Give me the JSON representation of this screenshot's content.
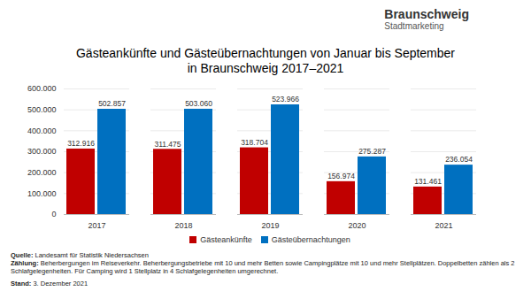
{
  "logo": {
    "name": "Braunschweig",
    "subname": "Stadtmarketing"
  },
  "chart_data": {
    "type": "bar",
    "title": "Gästeankünfte und Gästeübernachtungen von Januar bis September",
    "subtitle": "in Braunschweig 2017–2021",
    "categories": [
      "2017",
      "2018",
      "2019",
      "2020",
      "2021"
    ],
    "series": [
      {
        "name": "Gästeankünfte",
        "color": "#c00000",
        "values": [
          312916,
          311475,
          318704,
          156974,
          131461
        ],
        "value_labels": [
          "312.916",
          "311.475",
          "318.704",
          "156.974",
          "131.461"
        ]
      },
      {
        "name": "Gästeübernachtungen",
        "color": "#0070c0",
        "values": [
          502857,
          503060,
          523966,
          275287,
          236054
        ],
        "value_labels": [
          "502.857",
          "503.060",
          "523.966",
          "275.287",
          "236.054"
        ]
      }
    ],
    "ylim": [
      0,
      600000
    ],
    "yticks": [
      0,
      {
        "value": 100000,
        "label": "100.000"
      },
      {
        "value": 200000,
        "label": "200.000"
      },
      {
        "value": 300000,
        "label": "300.000"
      },
      {
        "value": 400000,
        "label": "400.000"
      },
      {
        "value": 500000,
        "label": "500.000"
      },
      {
        "value": 600000,
        "label": "600.000"
      }
    ],
    "grid": true,
    "legend": "bottom",
    "data_labels": true,
    "annotations": [
      {
        "label": "Quelle:",
        "text": "Landesamt für Statistik Niedersachsen"
      },
      {
        "label": "Zählung:",
        "text": "Beherbergungen im Reiseverkehr. Beherbergungsbetriebe mit 10 und mehr Betten sowie Campingplätze mit 10 und mehr Stellplätzen. Doppelbetten zählen als 2 Schlafgelegenheiten. Für Camping wird 1 Stellplatz in 4 Schlafgelegenheiten umgerechnet."
      },
      {
        "label": "",
        "text": ""
      },
      {
        "label": "Stand:",
        "text": "3. Dezember 2021"
      }
    ]
  }
}
